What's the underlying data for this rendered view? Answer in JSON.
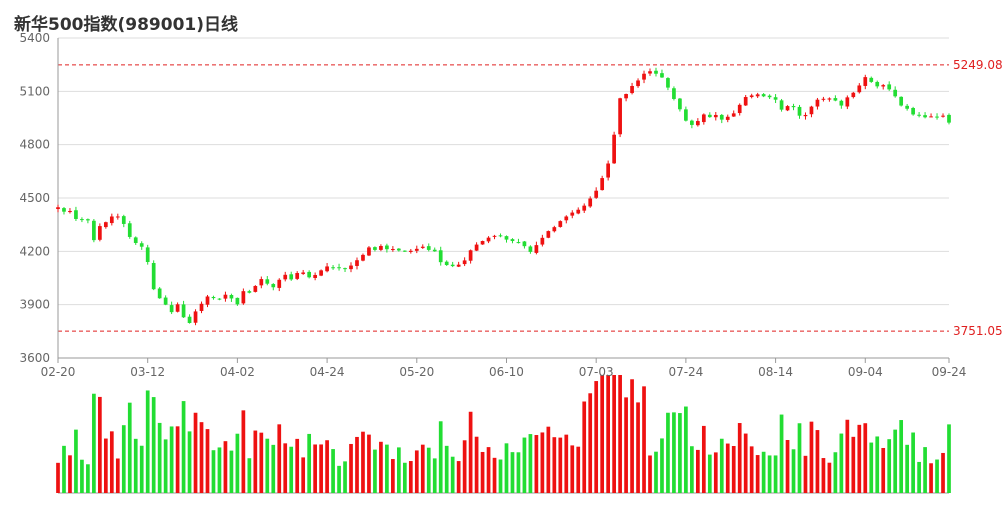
{
  "chart_data": {
    "type": "candlestick",
    "title": "新华500指数(989001)日线",
    "y_ticks": [
      3600,
      3900,
      4200,
      4500,
      4800,
      5100,
      5400
    ],
    "ylim": [
      3600,
      5400
    ],
    "x_tick_labels": [
      "02-20",
      "03-12",
      "04-02",
      "04-24",
      "05-20",
      "06-10",
      "07-03",
      "07-24",
      "08-14",
      "09-04",
      "09-24"
    ],
    "x_tick_index": [
      0,
      15,
      30,
      45,
      60,
      75,
      90,
      105,
      120,
      135,
      149
    ],
    "reference_lines": [
      {
        "label": "5249.08",
        "value": 5249.08,
        "color": "#e02020"
      },
      {
        "label": "3751.05",
        "value": 3751.05,
        "color": "#e02020"
      }
    ],
    "up_color": "#ee1111",
    "down_color": "#22dd33",
    "grid": true,
    "close": [
      4448,
      4423,
      4427,
      4382,
      4377,
      4374,
      4263,
      4342,
      4364,
      4396,
      4396,
      4354,
      4281,
      4247,
      4226,
      4140,
      3987,
      3936,
      3900,
      3858,
      3902,
      3829,
      3797,
      3862,
      3905,
      3946,
      3937,
      3929,
      3956,
      3935,
      3902,
      3976,
      3967,
      4005,
      4044,
      4018,
      3998,
      4040,
      4068,
      4042,
      4078,
      4081,
      4054,
      4067,
      4093,
      4115,
      4108,
      4107,
      4103,
      4120,
      4150,
      4180,
      4222,
      4208,
      4230,
      4212,
      4213,
      4205,
      4200,
      4203,
      4214,
      4226,
      4208,
      4200,
      4139,
      4123,
      4117,
      4125,
      4149,
      4206,
      4238,
      4258,
      4277,
      4287,
      4288,
      4266,
      4258,
      4251,
      4229,
      4197,
      4235,
      4276,
      4314,
      4336,
      4370,
      4396,
      4418,
      4434,
      4457,
      4497,
      4541,
      4612,
      4694,
      4856,
      5061,
      5085,
      5130,
      5161,
      5199,
      5213,
      5199,
      5178,
      5121,
      5057,
      4999,
      4935,
      4911,
      4933,
      4970,
      4955,
      4967,
      4941,
      4957,
      4976,
      5024,
      5068,
      5077,
      5083,
      5072,
      5067,
      5053,
      4997,
      5017,
      5011,
      4963,
      4967,
      5014,
      5053,
      5058,
      5060,
      5048,
      5020,
      5066,
      5092,
      5133,
      5180,
      5153,
      5128,
      5135,
      5111,
      5072,
      5020,
      5002,
      4970,
      4967,
      4954,
      4959,
      4957,
      4963,
      4924
    ]
  }
}
